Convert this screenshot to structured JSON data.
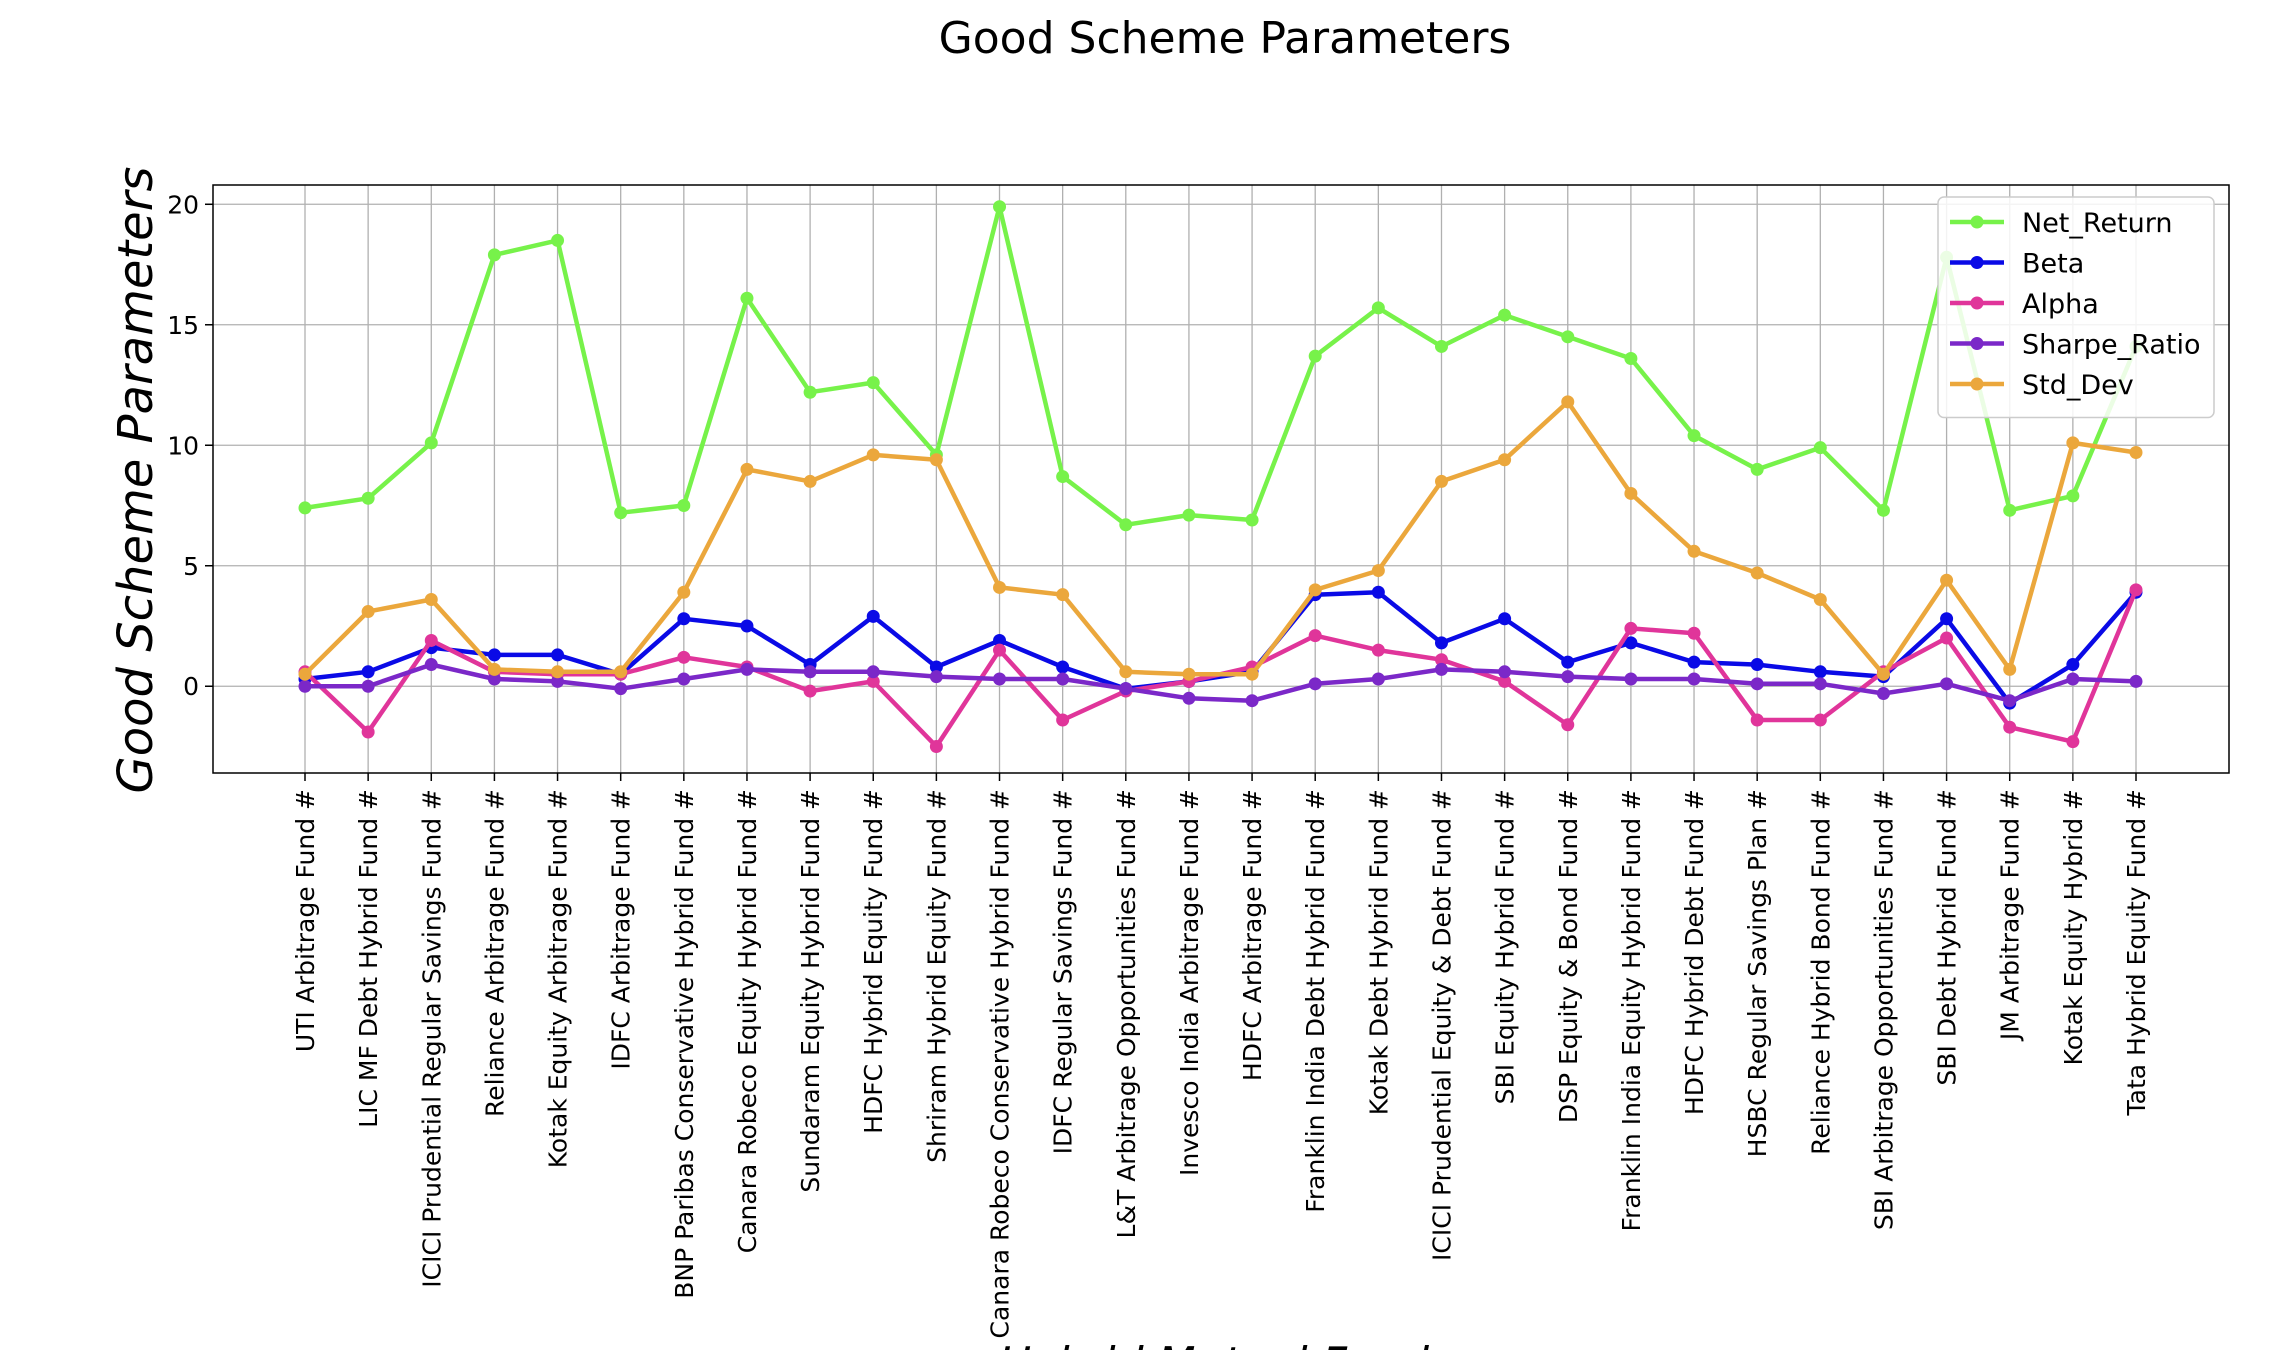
{
  "chart_data": {
    "type": "line",
    "title": "Good Scheme Parameters",
    "ylabel": "Good Scheme Parameters",
    "xlabel": "Hybrid Mutual Funds",
    "ylim": [
      -3.6,
      20.8
    ],
    "yticks": [
      0,
      5,
      10,
      15,
      20
    ],
    "grid": true,
    "legend_position": "top-right",
    "categories": [
      "UTI Arbitrage Fund #",
      "LIC MF Debt Hybrid Fund #",
      "ICICI Prudential Regular Savings Fund #",
      "Reliance Arbitrage Fund #",
      "Kotak Equity Arbitrage Fund #",
      "IDFC Arbitrage Fund #",
      "BNP Paribas Conservative Hybrid Fund #",
      "Canara Robeco Equity Hybrid Fund #",
      "Sundaram Equity Hybrid Fund #",
      "HDFC Hybrid Equity Fund #",
      "Shriram Hybrid Equity Fund #",
      "Canara Robeco Conservative Hybrid Fund #",
      "IDFC Regular Savings Fund #",
      "L&T Arbitrage Opportunities Fund #",
      "Invesco India Arbitrage Fund #",
      "HDFC Arbitrage Fund #",
      "Franklin India Debt Hybrid Fund #",
      "Kotak Debt Hybrid Fund #",
      "ICICI Prudential Equity & Debt Fund #",
      "SBI Equity Hybrid Fund #",
      "DSP Equity & Bond Fund #",
      "Franklin India Equity Hybrid Fund #",
      "HDFC Hybrid Debt Fund #",
      "HSBC Regular Savings Plan #",
      "Reliance Hybrid Bond Fund #",
      "SBI Arbitrage Opportunities Fund #",
      "SBI Debt Hybrid Fund #",
      "JM Arbitrage Fund #",
      "Kotak Equity Hybrid #",
      "Tata Hybrid Equity Fund #"
    ],
    "series": [
      {
        "name": "Net_Return",
        "color": "#77f24a",
        "values": [
          7.4,
          7.8,
          10.1,
          17.9,
          18.5,
          7.2,
          7.5,
          16.1,
          12.2,
          12.6,
          9.6,
          19.9,
          8.7,
          6.7,
          7.1,
          6.9,
          13.7,
          15.7,
          14.1,
          15.4,
          14.5,
          13.6,
          10.4,
          9.0,
          9.9,
          7.3,
          17.8,
          7.3,
          7.9,
          14.1
        ]
      },
      {
        "name": "Beta",
        "color": "#0a0ae6",
        "values": [
          0.3,
          0.6,
          1.6,
          1.3,
          1.3,
          0.5,
          2.8,
          2.5,
          0.9,
          2.9,
          0.8,
          1.9,
          0.8,
          -0.1,
          0.2,
          0.6,
          3.8,
          3.9,
          1.8,
          2.8,
          1.0,
          1.8,
          1.0,
          0.9,
          0.6,
          0.4,
          2.8,
          -0.7,
          0.9,
          3.9
        ]
      },
      {
        "name": "Alpha",
        "color": "#e0359a",
        "values": [
          0.6,
          -1.9,
          1.9,
          0.6,
          0.5,
          0.5,
          1.2,
          0.8,
          -0.2,
          0.2,
          -2.5,
          1.5,
          -1.4,
          -0.2,
          0.2,
          0.8,
          2.1,
          1.5,
          1.1,
          0.2,
          -1.6,
          2.4,
          2.2,
          -1.4,
          -1.4,
          0.6,
          2.0,
          -1.7,
          -2.3,
          4.0
        ]
      },
      {
        "name": "Sharpe_Ratio",
        "color": "#7b28c8",
        "values": [
          0.0,
          0.0,
          0.9,
          0.3,
          0.2,
          -0.1,
          0.3,
          0.7,
          0.6,
          0.6,
          0.4,
          0.3,
          0.3,
          -0.1,
          -0.5,
          -0.6,
          0.1,
          0.3,
          0.7,
          0.6,
          0.4,
          0.3,
          0.3,
          0.1,
          0.1,
          -0.3,
          0.1,
          -0.6,
          0.3,
          0.2
        ]
      },
      {
        "name": "Std_Dev",
        "color": "#eba73c",
        "values": [
          0.5,
          3.1,
          3.6,
          0.7,
          0.6,
          0.6,
          3.9,
          9.0,
          8.5,
          9.6,
          9.4,
          4.1,
          3.8,
          0.6,
          0.5,
          0.5,
          4.0,
          4.8,
          8.5,
          9.4,
          11.8,
          8.0,
          5.6,
          4.7,
          3.6,
          0.5,
          4.4,
          0.7,
          10.1,
          9.7
        ]
      }
    ]
  }
}
